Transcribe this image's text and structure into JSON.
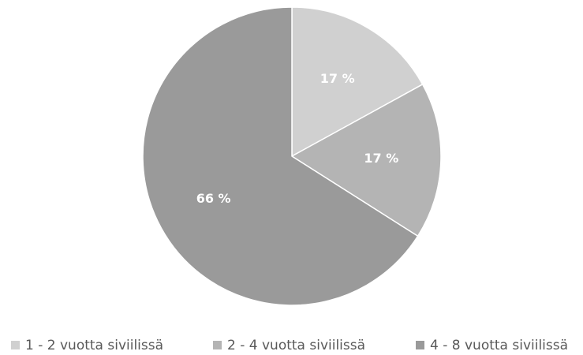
{
  "chart_data": {
    "type": "pie",
    "categories": [
      "1 - 2 vuotta siviilissä",
      "2 - 4 vuotta siviilissä",
      "4 - 8 vuotta siviilissä"
    ],
    "values": [
      17,
      17,
      66
    ],
    "value_labels": [
      "17 %",
      "17 %",
      "66 %"
    ],
    "colors": [
      "#d0d0d0",
      "#b4b4b4",
      "#9a9a9a"
    ],
    "legend": "bottom"
  }
}
